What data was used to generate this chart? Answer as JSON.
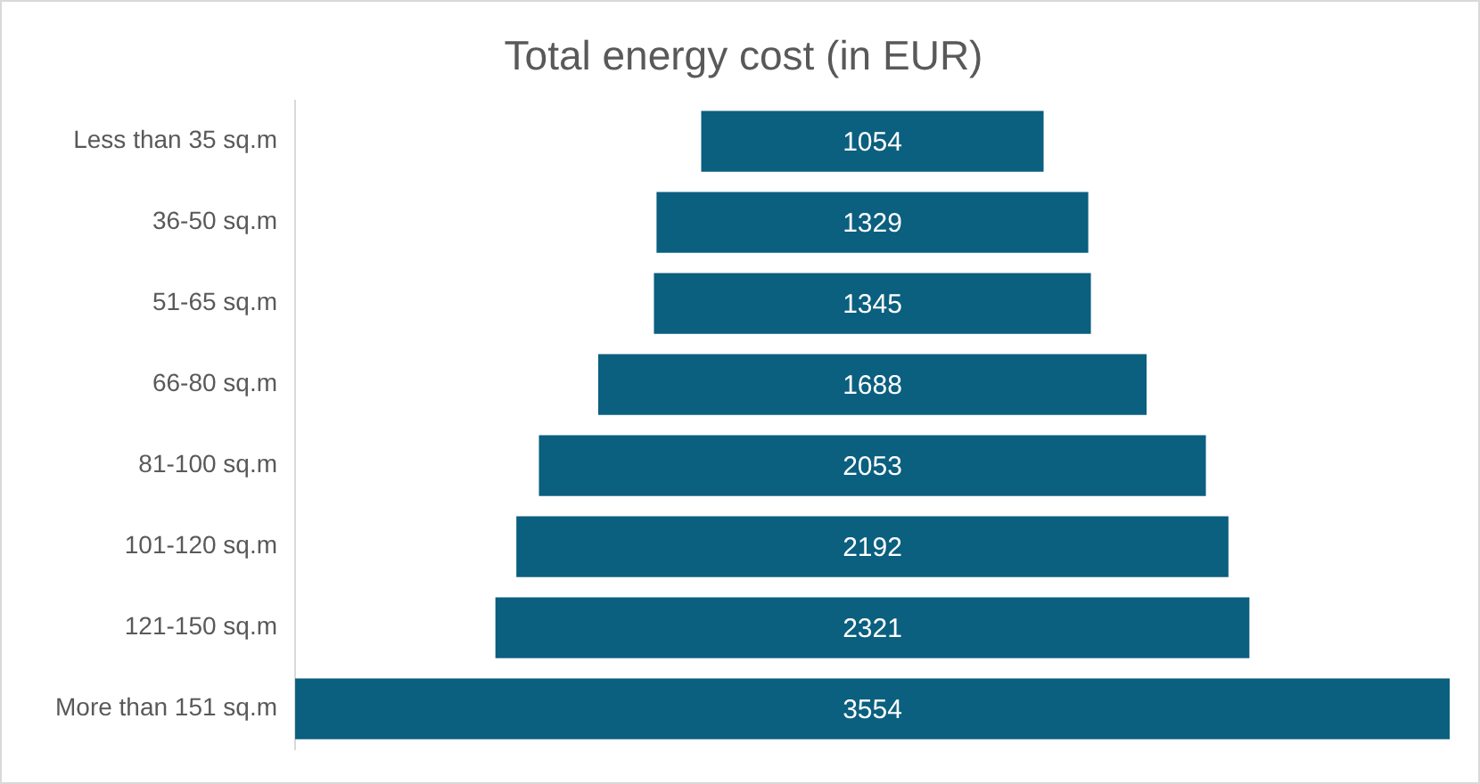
{
  "chart_data": {
    "type": "other",
    "title": "Total energy cost (in EUR)",
    "categories": [
      "Less than 35 sq.m",
      "36-50 sq.m",
      "51-65 sq.m",
      "66-80 sq.m",
      "81-100 sq.m",
      "101-120 sq.m",
      "121-150 sq.m",
      "More than 151 sq.m"
    ],
    "values": [
      1054,
      1329,
      1345,
      1688,
      2053,
      2192,
      2321,
      3554
    ],
    "color": "#0b5f7f",
    "data_labels": true
  }
}
